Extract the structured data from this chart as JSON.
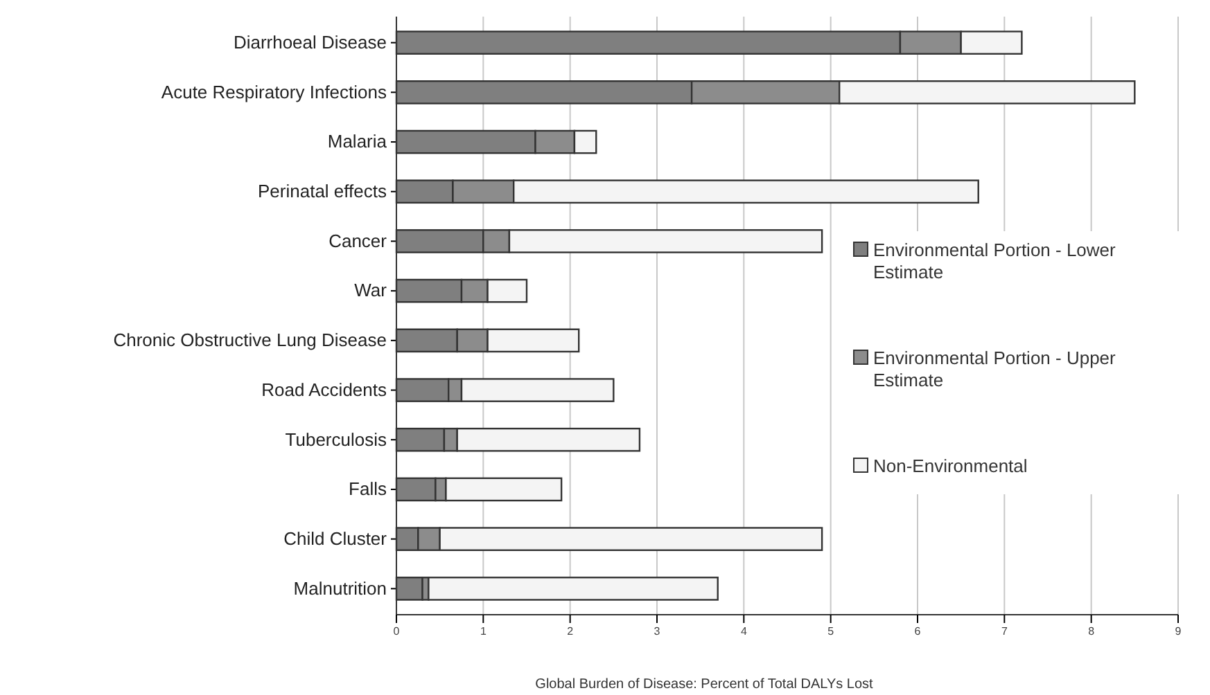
{
  "chart_data": {
    "type": "bar",
    "orientation": "horizontal",
    "stacked": true,
    "xlabel": "Global Burden of Disease: Percent of Total DALYs Lost",
    "categories": [
      "Diarrhoeal Disease",
      "Acute Respiratory Infections",
      "Malaria",
      "Perinatal effects",
      "Cancer",
      "War",
      "Chronic Obstructive Lung Disease",
      "Road Accidents",
      "Tuberculosis",
      "Falls",
      "Child Cluster",
      "Malnutrition"
    ],
    "series": [
      {
        "name": "Environmental Portion - Lower Estimate",
        "color": "#7f7f7f",
        "values": [
          5.8,
          3.4,
          1.6,
          0.65,
          1.0,
          0.75,
          0.7,
          0.6,
          0.55,
          0.45,
          0.25,
          0.3
        ]
      },
      {
        "name": "Environmental Portion - Upper Estimate",
        "color": "#8c8c8c",
        "values": [
          0.7,
          1.7,
          0.45,
          0.7,
          0.3,
          0.3,
          0.35,
          0.15,
          0.15,
          0.12,
          0.25,
          0.07
        ]
      },
      {
        "name": "Non-Environmental",
        "color": "#f4f4f4",
        "values": [
          0.7,
          3.4,
          0.25,
          5.35,
          3.6,
          0.45,
          1.05,
          1.75,
          2.1,
          1.33,
          4.4,
          3.33
        ]
      }
    ],
    "xlim": [
      0,
      9
    ],
    "xticks": [
      0,
      1,
      2,
      3,
      4,
      5,
      6,
      7,
      8,
      9
    ],
    "grid": "x",
    "legend": "right"
  }
}
